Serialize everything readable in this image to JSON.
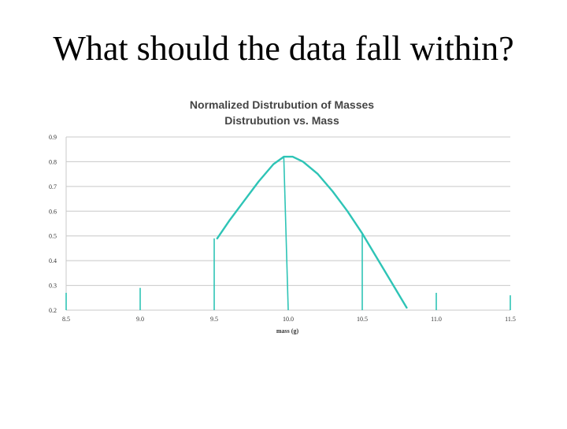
{
  "slide": {
    "title": "What should the data fall within?"
  },
  "chart_data": {
    "type": "line",
    "title": "Normalized Distrubution of Masses",
    "subtitle": "Distrubution vs. Mass",
    "xlabel": "mass (g)",
    "ylabel": "",
    "xlim": [
      8.5,
      11.5
    ],
    "ylim": [
      0.2,
      0.9
    ],
    "x_ticks": [
      "8.5",
      "9.0",
      "9.5",
      "10.0",
      "10.5",
      "11.0",
      "11.5"
    ],
    "y_ticks": [
      "0.2",
      "0.3",
      "0.4",
      "0.5",
      "0.6",
      "0.7",
      "0.8",
      "0.9"
    ],
    "grid": true,
    "color": "#2ec4b6",
    "series": [
      {
        "x": [
          9.52,
          9.6,
          9.7,
          9.8,
          9.9,
          9.97,
          10.03,
          10.1,
          10.2,
          10.3,
          10.4,
          10.5,
          10.6,
          10.7,
          10.8
        ],
        "y": [
          0.49,
          0.56,
          0.64,
          0.72,
          0.79,
          0.82,
          0.82,
          0.8,
          0.75,
          0.68,
          0.6,
          0.51,
          0.41,
          0.31,
          0.21
        ]
      }
    ],
    "vertical_markers": [
      {
        "x": 8.5,
        "from": 0.2,
        "to": 0.27
      },
      {
        "x": 9.0,
        "from": 0.2,
        "to": 0.29
      },
      {
        "x": 9.5,
        "from": 0.2,
        "to": 0.49
      },
      {
        "x": 10.0,
        "x_top": 9.97,
        "from": 0.2,
        "to": 0.82
      },
      {
        "x": 10.5,
        "from": 0.2,
        "to": 0.51
      },
      {
        "x": 11.0,
        "from": 0.2,
        "to": 0.27
      },
      {
        "x": 11.5,
        "from": 0.2,
        "to": 0.26
      }
    ]
  }
}
